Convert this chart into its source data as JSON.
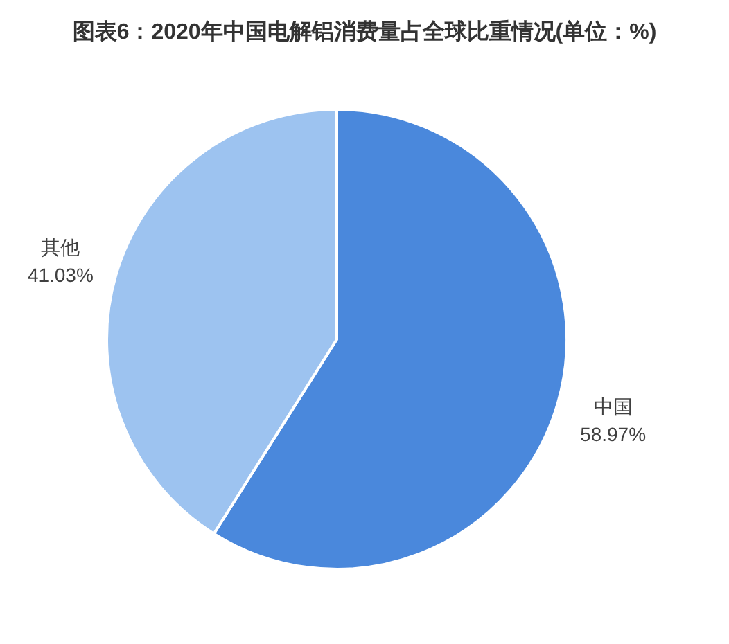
{
  "chart_data": {
    "type": "pie",
    "title": "图表6：2020年中国电解铝消费量占全球比重情况(单位：%)",
    "categories": [
      "中国",
      "其他"
    ],
    "values": [
      58.97,
      41.03
    ],
    "colors": [
      "#4a88dc",
      "#9dc3f0"
    ],
    "value_labels": [
      "58.97%",
      "41.03%"
    ]
  }
}
